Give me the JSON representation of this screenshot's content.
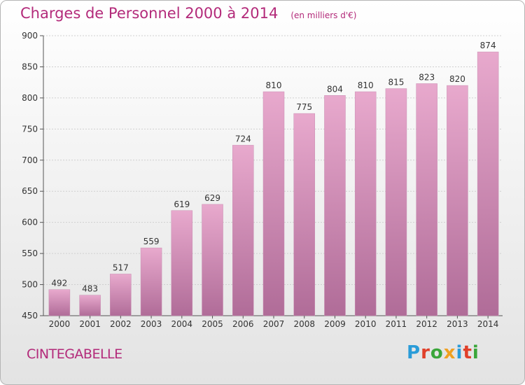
{
  "header": {
    "title": "Charges de Personnel 2000 à 2014",
    "unit": "(en milliers d'€)"
  },
  "footer": {
    "commune": "CINTEGABELLE",
    "brand": "Proxiti",
    "brand_colors": [
      "#2a9cd8",
      "#e0402a",
      "#3aa63a",
      "#f0a020",
      "#2a9cd8",
      "#e0402a",
      "#3aa63a"
    ]
  },
  "colors": {
    "bar_top": "#e8a9cd",
    "bar_bottom": "#b06c98",
    "accent": "#b32a7a",
    "grid": "#cfcfcf"
  },
  "chart_data": {
    "type": "bar",
    "title": "Charges de Personnel 2000 à 2014",
    "subtitle": "(en milliers d'€)",
    "xlabel": "",
    "ylabel": "",
    "categories": [
      "2000",
      "2001",
      "2002",
      "2003",
      "2004",
      "2005",
      "2006",
      "2007",
      "2008",
      "2009",
      "2010",
      "2011",
      "2012",
      "2013",
      "2014"
    ],
    "values": [
      492,
      483,
      517,
      559,
      619,
      629,
      724,
      810,
      775,
      804,
      810,
      815,
      823,
      820,
      874
    ],
    "ylim": [
      450,
      900
    ],
    "yticks": [
      450,
      500,
      550,
      600,
      650,
      700,
      750,
      800,
      850,
      900
    ],
    "grid": true,
    "legend": "none"
  }
}
